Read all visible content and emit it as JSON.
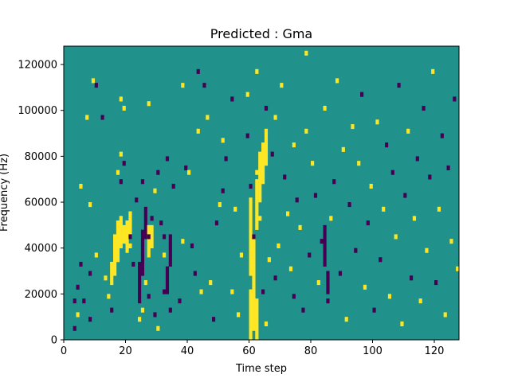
{
  "chart_data": {
    "type": "heatmap",
    "title": "Predicted : Gma",
    "xlabel": "Time step",
    "ylabel": "Frequency (Hz)",
    "xlim": [
      0,
      128
    ],
    "ylim": [
      0,
      128000
    ],
    "xticks": [
      "0",
      "20",
      "40",
      "60",
      "80",
      "100",
      "120"
    ],
    "yticks": [
      "0",
      "20000",
      "40000",
      "60000",
      "80000",
      "100000",
      "120000"
    ],
    "rows": 64,
    "colormap": "viridis",
    "levels": [
      {
        "value": -1,
        "color": "#440154"
      },
      {
        "value": 0,
        "color": "#21918c"
      },
      {
        "value": 1,
        "color": "#fde725"
      }
    ],
    "background_value": 0,
    "cells": [
      [
        3,
        2,
        -1
      ],
      [
        3,
        8,
        -1
      ],
      [
        4,
        5,
        1
      ],
      [
        4,
        11,
        -1
      ],
      [
        5,
        16,
        -1
      ],
      [
        5,
        33,
        1
      ],
      [
        6,
        8,
        -1
      ],
      [
        7,
        48,
        1
      ],
      [
        8,
        4,
        -1
      ],
      [
        8,
        14,
        -1
      ],
      [
        8,
        29,
        1
      ],
      [
        9,
        56,
        1
      ],
      [
        10,
        18,
        1
      ],
      [
        10,
        55,
        -1
      ],
      [
        12,
        48,
        -1
      ],
      [
        13,
        13,
        1
      ],
      [
        14,
        9,
        1
      ],
      [
        15,
        6,
        -1
      ],
      [
        17,
        17,
        1
      ],
      [
        17,
        36,
        1
      ],
      [
        18,
        34,
        -1
      ],
      [
        18,
        40,
        1
      ],
      [
        18,
        52,
        1
      ],
      [
        19,
        38,
        -1
      ],
      [
        19,
        50,
        1
      ],
      [
        20,
        24,
        1
      ],
      [
        21,
        20,
        1
      ],
      [
        21,
        22,
        -1
      ],
      [
        22,
        16,
        -1
      ],
      [
        23,
        30,
        -1
      ],
      [
        24,
        4,
        1
      ],
      [
        25,
        6,
        1
      ],
      [
        25,
        34,
        -1
      ],
      [
        26,
        12,
        1
      ],
      [
        27,
        9,
        -1
      ],
      [
        27,
        22,
        -1
      ],
      [
        27,
        51,
        1
      ],
      [
        28,
        24,
        1
      ],
      [
        28,
        26,
        -1
      ],
      [
        29,
        5,
        -1
      ],
      [
        29,
        32,
        1
      ],
      [
        30,
        2,
        1
      ],
      [
        30,
        36,
        -1
      ],
      [
        31,
        25,
        -1
      ],
      [
        32,
        10,
        -1
      ],
      [
        32,
        18,
        1
      ],
      [
        32,
        22,
        -1
      ],
      [
        33,
        39,
        -1
      ],
      [
        34,
        6,
        -1
      ],
      [
        35,
        33,
        -1
      ],
      [
        37,
        8,
        -1
      ],
      [
        38,
        21,
        1
      ],
      [
        38,
        55,
        1
      ],
      [
        39,
        37,
        -1
      ],
      [
        40,
        36,
        1
      ],
      [
        41,
        20,
        -1
      ],
      [
        42,
        14,
        -1
      ],
      [
        43,
        45,
        1
      ],
      [
        43,
        58,
        -1
      ],
      [
        44,
        10,
        1
      ],
      [
        45,
        55,
        -1
      ],
      [
        46,
        48,
        1
      ],
      [
        47,
        12,
        1
      ],
      [
        48,
        4,
        -1
      ],
      [
        49,
        25,
        -1
      ],
      [
        50,
        29,
        1
      ],
      [
        51,
        43,
        1
      ],
      [
        51,
        32,
        -1
      ],
      [
        52,
        39,
        -1
      ],
      [
        54,
        10,
        1
      ],
      [
        54,
        52,
        -1
      ],
      [
        55,
        28,
        1
      ],
      [
        56,
        5,
        1
      ],
      [
        57,
        18,
        1
      ],
      [
        59,
        53,
        1
      ],
      [
        59,
        44,
        -1
      ],
      [
        60,
        33,
        -1
      ],
      [
        61,
        22,
        -1
      ],
      [
        62,
        36,
        1
      ],
      [
        62,
        58,
        1
      ],
      [
        63,
        26,
        1
      ],
      [
        64,
        10,
        -1
      ],
      [
        65,
        50,
        -1
      ],
      [
        65,
        3,
        1
      ],
      [
        66,
        17,
        1
      ],
      [
        67,
        40,
        -1
      ],
      [
        68,
        48,
        1
      ],
      [
        68,
        13,
        -1
      ],
      [
        69,
        20,
        1
      ],
      [
        70,
        55,
        1
      ],
      [
        71,
        35,
        -1
      ],
      [
        72,
        27,
        1
      ],
      [
        73,
        15,
        1
      ],
      [
        74,
        9,
        -1
      ],
      [
        74,
        42,
        1
      ],
      [
        75,
        30,
        -1
      ],
      [
        76,
        24,
        1
      ],
      [
        77,
        6,
        -1
      ],
      [
        78,
        45,
        1
      ],
      [
        78,
        62,
        1
      ],
      [
        79,
        18,
        -1
      ],
      [
        80,
        38,
        1
      ],
      [
        81,
        31,
        -1
      ],
      [
        82,
        12,
        1
      ],
      [
        83,
        21,
        -1
      ],
      [
        84,
        50,
        1
      ],
      [
        85,
        8,
        -1
      ],
      [
        86,
        26,
        1
      ],
      [
        87,
        34,
        -1
      ],
      [
        88,
        56,
        1
      ],
      [
        89,
        14,
        -1
      ],
      [
        90,
        41,
        1
      ],
      [
        91,
        4,
        1
      ],
      [
        92,
        29,
        -1
      ],
      [
        93,
        46,
        1
      ],
      [
        94,
        19,
        -1
      ],
      [
        95,
        38,
        1
      ],
      [
        96,
        53,
        -1
      ],
      [
        97,
        11,
        1
      ],
      [
        98,
        25,
        -1
      ],
      [
        99,
        33,
        1
      ],
      [
        100,
        6,
        -1
      ],
      [
        101,
        47,
        1
      ],
      [
        102,
        17,
        -1
      ],
      [
        103,
        28,
        1
      ],
      [
        104,
        42,
        -1
      ],
      [
        105,
        9,
        1
      ],
      [
        106,
        36,
        -1
      ],
      [
        107,
        22,
        1
      ],
      [
        108,
        55,
        -1
      ],
      [
        109,
        3,
        1
      ],
      [
        110,
        31,
        -1
      ],
      [
        111,
        45,
        1
      ],
      [
        112,
        13,
        -1
      ],
      [
        113,
        26,
        1
      ],
      [
        114,
        39,
        -1
      ],
      [
        115,
        8,
        1
      ],
      [
        116,
        50,
        -1
      ],
      [
        117,
        19,
        1
      ],
      [
        118,
        35,
        -1
      ],
      [
        119,
        58,
        1
      ],
      [
        120,
        12,
        -1
      ],
      [
        121,
        28,
        1
      ],
      [
        122,
        44,
        -1
      ],
      [
        123,
        5,
        1
      ],
      [
        124,
        37,
        -1
      ],
      [
        125,
        21,
        1
      ],
      [
        126,
        52,
        -1
      ],
      [
        127,
        15,
        1
      ]
    ],
    "bands": [
      {
        "x": 15,
        "rows": [
          12,
          16
        ],
        "value": 1
      },
      {
        "x": 16,
        "rows": [
          14,
          22
        ],
        "value": 1
      },
      {
        "x": 17,
        "rows": [
          18,
          25
        ],
        "value": 1
      },
      {
        "x": 18,
        "rows": [
          20,
          26
        ],
        "value": 1
      },
      {
        "x": 19,
        "rows": [
          21,
          24
        ],
        "value": 1
      },
      {
        "x": 20,
        "rows": [
          19,
          25
        ],
        "value": 1
      },
      {
        "x": 21,
        "rows": [
          22,
          27
        ],
        "value": 1
      },
      {
        "x": 24,
        "rows": [
          8,
          16
        ],
        "value": -1
      },
      {
        "x": 25,
        "rows": [
          14,
          23
        ],
        "value": -1
      },
      {
        "x": 26,
        "rows": [
          22,
          28
        ],
        "value": -1
      },
      {
        "x": 27,
        "rows": [
          18,
          24
        ],
        "value": 1
      },
      {
        "x": 28,
        "rows": [
          20,
          23
        ],
        "value": 1
      },
      {
        "x": 33,
        "rows": [
          10,
          15
        ],
        "value": -1
      },
      {
        "x": 34,
        "rows": [
          16,
          22
        ],
        "value": -1
      },
      {
        "x": 60,
        "rows": [
          0,
          10
        ],
        "value": 1
      },
      {
        "x": 60,
        "rows": [
          14,
          30
        ],
        "value": 1
      },
      {
        "x": 61,
        "rows": [
          2,
          22
        ],
        "value": 1
      },
      {
        "x": 62,
        "rows": [
          0,
          8
        ],
        "value": 1
      },
      {
        "x": 62,
        "rows": [
          24,
          34
        ],
        "value": 1
      },
      {
        "x": 63,
        "rows": [
          30,
          40
        ],
        "value": 1
      },
      {
        "x": 64,
        "rows": [
          34,
          42
        ],
        "value": 1
      },
      {
        "x": 65,
        "rows": [
          38,
          45
        ],
        "value": 1
      },
      {
        "x": 84,
        "rows": [
          16,
          24
        ],
        "value": -1
      },
      {
        "x": 85,
        "rows": [
          10,
          14
        ],
        "value": -1
      }
    ]
  }
}
